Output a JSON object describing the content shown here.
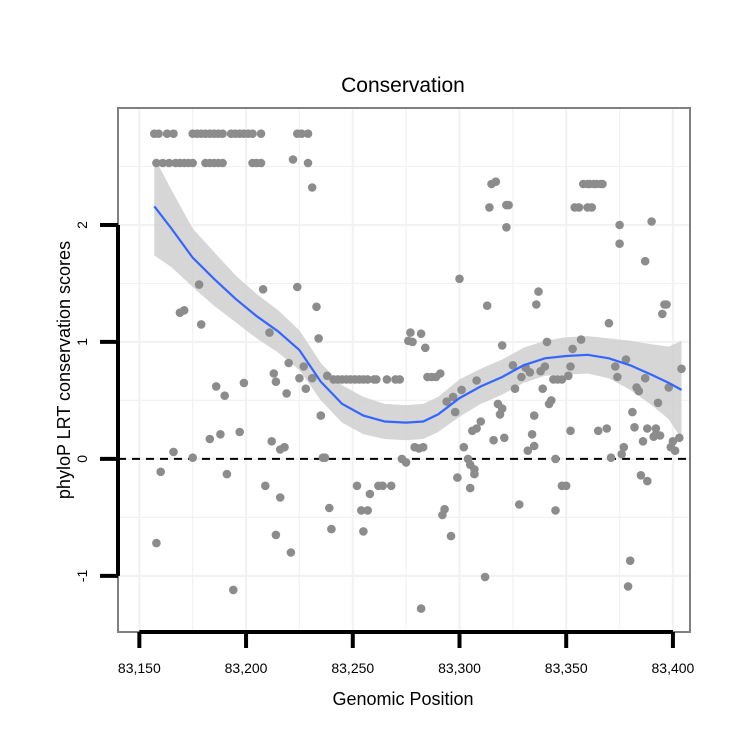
{
  "chart_data": {
    "type": "scatter",
    "title": "Conservation",
    "xlabel": "Genomic Position",
    "ylabel": "phyloP LRT conservation scores",
    "xlim": [
      83140,
      83408
    ],
    "ylim": [
      -1.48,
      3.0
    ],
    "x_ticks": [
      83150,
      83200,
      83250,
      83300,
      83350,
      83400
    ],
    "x_tick_labels": [
      "83,150",
      "83,200",
      "83,250",
      "83,300",
      "83,350",
      "83,400"
    ],
    "y_ticks": [
      -1,
      0,
      1,
      2
    ],
    "y_tick_labels": [
      "-1",
      "0",
      "1",
      "2"
    ],
    "reference_line": {
      "y": 0,
      "style": "dashed"
    },
    "colors": {
      "points": "#8c8c8c",
      "smooth": "#3366ff",
      "band": "#cfcfcf",
      "panel_border": "#808080",
      "grid": "#f2f2f2"
    },
    "points": [
      [
        83157,
        2.78
      ],
      [
        83159,
        2.78
      ],
      [
        83163,
        2.78
      ],
      [
        83166,
        2.78
      ],
      [
        83175,
        2.78
      ],
      [
        83177,
        2.78
      ],
      [
        83179,
        2.78
      ],
      [
        83181,
        2.78
      ],
      [
        83183,
        2.78
      ],
      [
        83185,
        2.78
      ],
      [
        83187,
        2.78
      ],
      [
        83189,
        2.78
      ],
      [
        83193,
        2.78
      ],
      [
        83195,
        2.78
      ],
      [
        83197,
        2.78
      ],
      [
        83199,
        2.78
      ],
      [
        83201,
        2.78
      ],
      [
        83203,
        2.78
      ],
      [
        83207,
        2.78
      ],
      [
        83224,
        2.78
      ],
      [
        83226,
        2.78
      ],
      [
        83229,
        2.78
      ],
      [
        83158,
        2.53
      ],
      [
        83161,
        2.53
      ],
      [
        83164,
        2.53
      ],
      [
        83167,
        2.53
      ],
      [
        83169,
        2.53
      ],
      [
        83171,
        2.53
      ],
      [
        83173,
        2.53
      ],
      [
        83175,
        2.53
      ],
      [
        83181,
        2.53
      ],
      [
        83183,
        2.53
      ],
      [
        83185,
        2.53
      ],
      [
        83187,
        2.53
      ],
      [
        83189,
        2.53
      ],
      [
        83203,
        2.53
      ],
      [
        83205,
        2.53
      ],
      [
        83207,
        2.53
      ],
      [
        83222,
        2.56
      ],
      [
        83229,
        2.53
      ],
      [
        83231,
        2.32
      ],
      [
        83158,
        -0.72
      ],
      [
        83160,
        -0.11
      ],
      [
        83166,
        0.06
      ],
      [
        83169,
        1.25
      ],
      [
        83171,
        1.27
      ],
      [
        83175,
        0.01
      ],
      [
        83178,
        1.49
      ],
      [
        83179,
        1.15
      ],
      [
        83183,
        0.17
      ],
      [
        83186,
        0.62
      ],
      [
        83188,
        0.21
      ],
      [
        83190,
        0.54
      ],
      [
        83191,
        -0.13
      ],
      [
        83194,
        -1.12
      ],
      [
        83197,
        0.23
      ],
      [
        83199,
        0.65
      ],
      [
        83208,
        1.45
      ],
      [
        83209,
        -0.23
      ],
      [
        83211,
        1.08
      ],
      [
        83212,
        0.15
      ],
      [
        83213,
        0.73
      ],
      [
        83214,
        0.66
      ],
      [
        83214,
        -0.65
      ],
      [
        83216,
        -0.33
      ],
      [
        83216,
        0.08
      ],
      [
        83218,
        0.1
      ],
      [
        83219,
        0.56
      ],
      [
        83220,
        0.82
      ],
      [
        83221,
        -0.8
      ],
      [
        83224,
        1.47
      ],
      [
        83225,
        0.69
      ],
      [
        83227,
        0.79
      ],
      [
        83228,
        0.6
      ],
      [
        83231,
        0.69
      ],
      [
        83233,
        1.3
      ],
      [
        83234,
        1.03
      ],
      [
        83235,
        0.37
      ],
      [
        83236,
        0.01
      ],
      [
        83237,
        0.01
      ],
      [
        83238,
        0.71
      ],
      [
        83239,
        -0.42
      ],
      [
        83240,
        -0.6
      ],
      [
        83241,
        0.68
      ],
      [
        83243,
        0.68
      ],
      [
        83245,
        0.68
      ],
      [
        83247,
        0.68
      ],
      [
        83249,
        0.68
      ],
      [
        83251,
        0.68
      ],
      [
        83253,
        0.68
      ],
      [
        83255,
        0.68
      ],
      [
        83257,
        0.68
      ],
      [
        83252,
        -0.23
      ],
      [
        83254,
        -0.44
      ],
      [
        83255,
        -0.62
      ],
      [
        83257,
        -0.44
      ],
      [
        83258,
        -0.3
      ],
      [
        83260,
        0.68
      ],
      [
        83261,
        0.68
      ],
      [
        83262,
        -0.23
      ],
      [
        83264,
        -0.23
      ],
      [
        83266,
        0.68
      ],
      [
        83268,
        -0.23
      ],
      [
        83270,
        0.68
      ],
      [
        83272,
        0.68
      ],
      [
        83273,
        0.0
      ],
      [
        83275,
        -0.03
      ],
      [
        83276,
        1.01
      ],
      [
        83277,
        1.08
      ],
      [
        83278,
        1.0
      ],
      [
        83279,
        0.1
      ],
      [
        83281,
        0.09
      ],
      [
        83282,
        1.07
      ],
      [
        83282,
        -1.28
      ],
      [
        83283,
        0.1
      ],
      [
        83284,
        0.95
      ],
      [
        83285,
        0.7
      ],
      [
        83287,
        0.7
      ],
      [
        83289,
        0.7
      ],
      [
        83291,
        0.73
      ],
      [
        83292,
        -0.48
      ],
      [
        83293,
        -0.43
      ],
      [
        83294,
        0.49
      ],
      [
        83296,
        -0.66
      ],
      [
        83297,
        0.53
      ],
      [
        83298,
        0.4
      ],
      [
        83299,
        -0.16
      ],
      [
        83300,
        1.54
      ],
      [
        83301,
        0.59
      ],
      [
        83302,
        0.1
      ],
      [
        83304,
        0.0
      ],
      [
        83305,
        -0.05
      ],
      [
        83305,
        -0.25
      ],
      [
        83306,
        0.24
      ],
      [
        83307,
        -0.13
      ],
      [
        83307,
        -0.09
      ],
      [
        83308,
        0.67
      ],
      [
        83308,
        0.26
      ],
      [
        83310,
        0.32
      ],
      [
        83312,
        -1.01
      ],
      [
        83313,
        1.31
      ],
      [
        83314,
        2.15
      ],
      [
        83315,
        2.35
      ],
      [
        83316,
        0.16
      ],
      [
        83317,
        2.37
      ],
      [
        83318,
        0.47
      ],
      [
        83319,
        0.38
      ],
      [
        83320,
        0.43
      ],
      [
        83320,
        0.97
      ],
      [
        83321,
        0.18
      ],
      [
        83322,
        2.17
      ],
      [
        83322,
        1.98
      ],
      [
        83323,
        2.17
      ],
      [
        83325,
        0.8
      ],
      [
        83326,
        0.6
      ],
      [
        83328,
        -0.39
      ],
      [
        83329,
        0.7
      ],
      [
        83331,
        0.78
      ],
      [
        83332,
        0.07
      ],
      [
        83333,
        0.74
      ],
      [
        83334,
        0.21
      ],
      [
        83335,
        0.37
      ],
      [
        83335,
        0.11
      ],
      [
        83336,
        1.32
      ],
      [
        83337,
        1.43
      ],
      [
        83338,
        0.75
      ],
      [
        83339,
        0.6
      ],
      [
        83340,
        0.79
      ],
      [
        83341,
        1.0
      ],
      [
        83342,
        0.47
      ],
      [
        83343,
        0.5
      ],
      [
        83344,
        0.68
      ],
      [
        83345,
        0.0
      ],
      [
        83345,
        -0.44
      ],
      [
        83346,
        0.68
      ],
      [
        83348,
        0.68
      ],
      [
        83348,
        -0.23
      ],
      [
        83350,
        -0.23
      ],
      [
        83351,
        0.71
      ],
      [
        83352,
        0.24
      ],
      [
        83352,
        0.79
      ],
      [
        83353,
        0.94
      ],
      [
        83354,
        2.15
      ],
      [
        83356,
        2.15
      ],
      [
        83357,
        1.02
      ],
      [
        83358,
        2.35
      ],
      [
        83360,
        2.35
      ],
      [
        83360,
        2.15
      ],
      [
        83361,
        2.35
      ],
      [
        83362,
        2.15
      ],
      [
        83363,
        2.35
      ],
      [
        83364,
        2.35
      ],
      [
        83365,
        0.24
      ],
      [
        83366,
        2.35
      ],
      [
        83367,
        2.35
      ],
      [
        83369,
        0.26
      ],
      [
        83370,
        1.16
      ],
      [
        83371,
        0.01
      ],
      [
        83373,
        0.79
      ],
      [
        83374,
        0.7
      ],
      [
        83375,
        1.84
      ],
      [
        83375,
        2.0
      ],
      [
        83376,
        0.04
      ],
      [
        83377,
        0.1
      ],
      [
        83378,
        0.85
      ],
      [
        83379,
        -1.09
      ],
      [
        83380,
        -0.87
      ],
      [
        83381,
        0.4
      ],
      [
        83382,
        0.27
      ],
      [
        83383,
        0.61
      ],
      [
        83384,
        0.58
      ],
      [
        83385,
        -0.14
      ],
      [
        83386,
        0.15
      ],
      [
        83387,
        1.69
      ],
      [
        83387,
        0.69
      ],
      [
        83388,
        -0.19
      ],
      [
        83388,
        0.26
      ],
      [
        83390,
        2.03
      ],
      [
        83391,
        0.19
      ],
      [
        83392,
        0.26
      ],
      [
        83392,
        0.21
      ],
      [
        83393,
        0.48
      ],
      [
        83394,
        0.2
      ],
      [
        83395,
        1.24
      ],
      [
        83396,
        1.32
      ],
      [
        83397,
        1.32
      ],
      [
        83398,
        0.61
      ],
      [
        83399,
        0.1
      ],
      [
        83400,
        0.15
      ],
      [
        83401,
        0.07
      ],
      [
        83403,
        0.18
      ],
      [
        83404,
        0.77
      ]
    ],
    "smooth": [
      [
        83157,
        2.16,
        1.74,
        2.58
      ],
      [
        83165,
        1.97,
        1.64,
        2.3
      ],
      [
        83175,
        1.72,
        1.47,
        1.97
      ],
      [
        83185,
        1.54,
        1.31,
        1.77
      ],
      [
        83195,
        1.37,
        1.17,
        1.57
      ],
      [
        83205,
        1.22,
        1.03,
        1.41
      ],
      [
        83215,
        1.09,
        0.91,
        1.27
      ],
      [
        83225,
        0.93,
        0.76,
        1.1
      ],
      [
        83235,
        0.66,
        0.5,
        0.82
      ],
      [
        83245,
        0.47,
        0.31,
        0.63
      ],
      [
        83255,
        0.37,
        0.21,
        0.53
      ],
      [
        83265,
        0.32,
        0.17,
        0.47
      ],
      [
        83275,
        0.31,
        0.16,
        0.46
      ],
      [
        83283,
        0.32,
        0.17,
        0.47
      ],
      [
        83290,
        0.38,
        0.23,
        0.53
      ],
      [
        83300,
        0.52,
        0.36,
        0.68
      ],
      [
        83310,
        0.62,
        0.47,
        0.77
      ],
      [
        83320,
        0.7,
        0.55,
        0.85
      ],
      [
        83330,
        0.8,
        0.65,
        0.95
      ],
      [
        83340,
        0.86,
        0.71,
        1.01
      ],
      [
        83350,
        0.88,
        0.72,
        1.04
      ],
      [
        83360,
        0.89,
        0.73,
        1.05
      ],
      [
        83370,
        0.86,
        0.69,
        1.03
      ],
      [
        83380,
        0.8,
        0.59,
        1.01
      ],
      [
        83390,
        0.72,
        0.46,
        0.98
      ],
      [
        83398,
        0.65,
        0.34,
        0.96
      ],
      [
        83404,
        0.59,
        0.17,
        1.01
      ]
    ]
  }
}
